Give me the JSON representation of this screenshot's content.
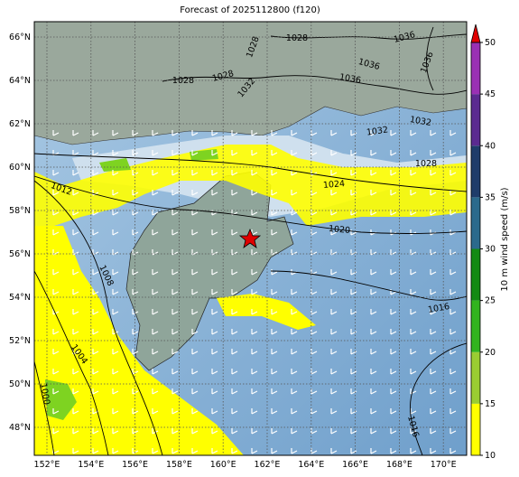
{
  "title": "Forecast of 2025112800 (f120)",
  "map": {
    "lon_labels": [
      "152°E",
      "154°E",
      "156°E",
      "158°E",
      "160°E",
      "162°E",
      "164°E",
      "166°E",
      "168°E",
      "170°E"
    ],
    "lat_labels": [
      "48°N",
      "50°N",
      "52°N",
      "54°N",
      "56°N",
      "58°N",
      "60°N",
      "62°N",
      "64°N",
      "66°N"
    ],
    "contour_labels": [
      1028,
      1036,
      1036,
      1036,
      1036,
      1028,
      1028,
      1032,
      1028,
      1032,
      1032,
      1028,
      1024,
      1020,
      1012,
      1008,
      1004,
      1000,
      1016,
      1016
    ]
  },
  "colorbar": {
    "label": "10 m wind speed (m/s)",
    "ticks": [
      10,
      15,
      20,
      25,
      30,
      35,
      40,
      45,
      50
    ],
    "colors": [
      "#ffff00",
      "#9acd32",
      "#32b41e",
      "#138a13",
      "#2b6a8c",
      "#1f3c6a",
      "#5b2a90",
      "#9a30b4"
    ],
    "extend_color": "#e00000"
  }
}
